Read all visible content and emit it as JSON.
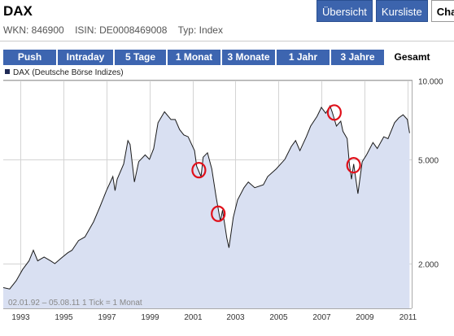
{
  "header": {
    "title": "DAX"
  },
  "top_tabs": [
    {
      "label": "Übersicht"
    },
    {
      "label": "Kursliste"
    },
    {
      "label": "Cha"
    }
  ],
  "meta": {
    "wkn": "WKN: 846900",
    "isin": "ISIN: DE0008469008",
    "type": "Typ: Index"
  },
  "periods": [
    {
      "label": "Push",
      "active": false
    },
    {
      "label": "Intraday",
      "active": false
    },
    {
      "label": "5 Tage",
      "active": false
    },
    {
      "label": "1 Monat",
      "active": false
    },
    {
      "label": "3 Monate",
      "active": false
    },
    {
      "label": "1 Jahr",
      "active": false
    },
    {
      "label": "3 Jahre",
      "active": false
    },
    {
      "label": "Gesamt",
      "active": true
    }
  ],
  "chart_data": {
    "type": "area",
    "scale": "log",
    "legend": "DAX (Deutsche Börse Indizes)",
    "footer": "02.01.92 – 05.08.11   1 Tick = 1 Monat",
    "ylim": [
      1350,
      10000
    ],
    "y_ticks": [
      {
        "v": 10000,
        "label": "10.000"
      },
      {
        "v": 5000,
        "label": "5.000"
      },
      {
        "v": 2000,
        "label": "2.000"
      }
    ],
    "xlim": [
      1992.7,
      2011.7
    ],
    "x_ticks": [
      "1993",
      "1995",
      "1997",
      "1999",
      "2001",
      "2003",
      "2005",
      "2007",
      "2009",
      "2011"
    ],
    "grid": true,
    "accent_color": "#d9e0f2",
    "line_color": "#1a1a1a",
    "highlight_color": "#e0101a",
    "series": [
      {
        "values": [
          [
            1992.7,
            1620
          ],
          [
            1993.0,
            1600
          ],
          [
            1993.3,
            1720
          ],
          [
            1993.6,
            1900
          ],
          [
            1993.9,
            2050
          ],
          [
            1994.1,
            2250
          ],
          [
            1994.3,
            2050
          ],
          [
            1994.6,
            2120
          ],
          [
            1994.9,
            2050
          ],
          [
            1995.1,
            2000
          ],
          [
            1995.4,
            2100
          ],
          [
            1995.7,
            2200
          ],
          [
            1995.9,
            2250
          ],
          [
            1996.2,
            2450
          ],
          [
            1996.5,
            2530
          ],
          [
            1996.9,
            2890
          ],
          [
            1997.2,
            3300
          ],
          [
            1997.5,
            3800
          ],
          [
            1997.8,
            4300
          ],
          [
            1997.9,
            3800
          ],
          [
            1998.0,
            4200
          ],
          [
            1998.3,
            4800
          ],
          [
            1998.5,
            5900
          ],
          [
            1998.6,
            5700
          ],
          [
            1998.8,
            4100
          ],
          [
            1999.0,
            4900
          ],
          [
            1999.3,
            5200
          ],
          [
            1999.5,
            5000
          ],
          [
            1999.7,
            5500
          ],
          [
            1999.9,
            6900
          ],
          [
            2000.2,
            7600
          ],
          [
            2000.5,
            7100
          ],
          [
            2000.7,
            7100
          ],
          [
            2000.9,
            6500
          ],
          [
            2001.1,
            6200
          ],
          [
            2001.3,
            6100
          ],
          [
            2001.6,
            5400
          ],
          [
            2001.7,
            4700
          ],
          [
            2001.9,
            4300
          ],
          [
            2002.0,
            5100
          ],
          [
            2002.2,
            5300
          ],
          [
            2002.4,
            4600
          ],
          [
            2002.6,
            3600
          ],
          [
            2002.8,
            2900
          ],
          [
            2002.9,
            3200
          ],
          [
            2003.1,
            2500
          ],
          [
            2003.2,
            2300
          ],
          [
            2003.4,
            3000
          ],
          [
            2003.6,
            3500
          ],
          [
            2003.9,
            3900
          ],
          [
            2004.1,
            4100
          ],
          [
            2004.4,
            3900
          ],
          [
            2004.8,
            4000
          ],
          [
            2005.0,
            4300
          ],
          [
            2005.4,
            4600
          ],
          [
            2005.8,
            5000
          ],
          [
            2006.1,
            5600
          ],
          [
            2006.3,
            5900
          ],
          [
            2006.5,
            5400
          ],
          [
            2006.8,
            6100
          ],
          [
            2007.0,
            6700
          ],
          [
            2007.3,
            7300
          ],
          [
            2007.5,
            7900
          ],
          [
            2007.7,
            7500
          ],
          [
            2007.9,
            8000
          ],
          [
            2008.0,
            7600
          ],
          [
            2008.2,
            6700
          ],
          [
            2008.4,
            7000
          ],
          [
            2008.5,
            6400
          ],
          [
            2008.7,
            6000
          ],
          [
            2008.8,
            4800
          ],
          [
            2008.9,
            4200
          ],
          [
            2009.0,
            4800
          ],
          [
            2009.2,
            3700
          ],
          [
            2009.4,
            4900
          ],
          [
            2009.6,
            5200
          ],
          [
            2009.9,
            5800
          ],
          [
            2010.1,
            5500
          ],
          [
            2010.4,
            6100
          ],
          [
            2010.6,
            6000
          ],
          [
            2010.9,
            6900
          ],
          [
            2011.1,
            7200
          ],
          [
            2011.3,
            7400
          ],
          [
            2011.5,
            7100
          ],
          [
            2011.6,
            6300
          ]
        ]
      }
    ],
    "highlights": [
      {
        "x": 2001.8,
        "y": 4550
      },
      {
        "x": 2002.7,
        "y": 3100
      },
      {
        "x": 2008.1,
        "y": 7550
      },
      {
        "x": 2009.0,
        "y": 4750
      }
    ]
  }
}
